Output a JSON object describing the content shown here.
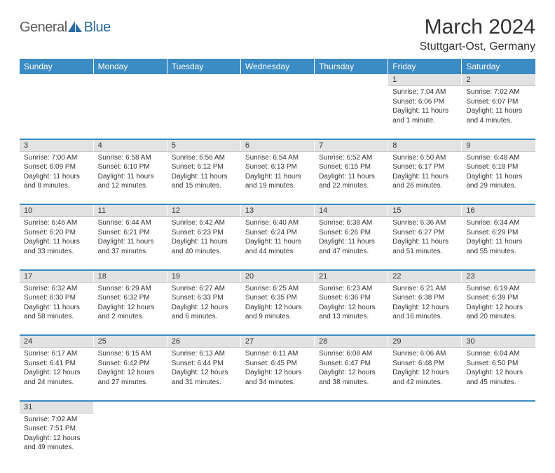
{
  "logo": {
    "general": "General",
    "blue": "Blue"
  },
  "title": {
    "month": "March 2024",
    "location": "Stuttgart-Ost, Germany"
  },
  "colors": {
    "header_bg": "#3b8bc4",
    "header_text": "#ffffff",
    "daynum_bg": "#e2e2e2",
    "row_divider": "#3b8bc4",
    "text": "#333333",
    "logo_general": "#5a5a5a",
    "logo_blue": "#2b6ca3"
  },
  "weekdays": [
    "Sunday",
    "Monday",
    "Tuesday",
    "Wednesday",
    "Thursday",
    "Friday",
    "Saturday"
  ],
  "weeks": [
    {
      "days": [
        null,
        null,
        null,
        null,
        null,
        {
          "n": "1",
          "sunrise": "Sunrise: 7:04 AM",
          "sunset": "Sunset: 6:06 PM",
          "day1": "Daylight: 11 hours",
          "day2": "and 1 minute."
        },
        {
          "n": "2",
          "sunrise": "Sunrise: 7:02 AM",
          "sunset": "Sunset: 6:07 PM",
          "day1": "Daylight: 11 hours",
          "day2": "and 4 minutes."
        }
      ]
    },
    {
      "days": [
        {
          "n": "3",
          "sunrise": "Sunrise: 7:00 AM",
          "sunset": "Sunset: 6:09 PM",
          "day1": "Daylight: 11 hours",
          "day2": "and 8 minutes."
        },
        {
          "n": "4",
          "sunrise": "Sunrise: 6:58 AM",
          "sunset": "Sunset: 6:10 PM",
          "day1": "Daylight: 11 hours",
          "day2": "and 12 minutes."
        },
        {
          "n": "5",
          "sunrise": "Sunrise: 6:56 AM",
          "sunset": "Sunset: 6:12 PM",
          "day1": "Daylight: 11 hours",
          "day2": "and 15 minutes."
        },
        {
          "n": "6",
          "sunrise": "Sunrise: 6:54 AM",
          "sunset": "Sunset: 6:13 PM",
          "day1": "Daylight: 11 hours",
          "day2": "and 19 minutes."
        },
        {
          "n": "7",
          "sunrise": "Sunrise: 6:52 AM",
          "sunset": "Sunset: 6:15 PM",
          "day1": "Daylight: 11 hours",
          "day2": "and 22 minutes."
        },
        {
          "n": "8",
          "sunrise": "Sunrise: 6:50 AM",
          "sunset": "Sunset: 6:17 PM",
          "day1": "Daylight: 11 hours",
          "day2": "and 26 minutes."
        },
        {
          "n": "9",
          "sunrise": "Sunrise: 6:48 AM",
          "sunset": "Sunset: 6:18 PM",
          "day1": "Daylight: 11 hours",
          "day2": "and 29 minutes."
        }
      ]
    },
    {
      "days": [
        {
          "n": "10",
          "sunrise": "Sunrise: 6:46 AM",
          "sunset": "Sunset: 6:20 PM",
          "day1": "Daylight: 11 hours",
          "day2": "and 33 minutes."
        },
        {
          "n": "11",
          "sunrise": "Sunrise: 6:44 AM",
          "sunset": "Sunset: 6:21 PM",
          "day1": "Daylight: 11 hours",
          "day2": "and 37 minutes."
        },
        {
          "n": "12",
          "sunrise": "Sunrise: 6:42 AM",
          "sunset": "Sunset: 6:23 PM",
          "day1": "Daylight: 11 hours",
          "day2": "and 40 minutes."
        },
        {
          "n": "13",
          "sunrise": "Sunrise: 6:40 AM",
          "sunset": "Sunset: 6:24 PM",
          "day1": "Daylight: 11 hours",
          "day2": "and 44 minutes."
        },
        {
          "n": "14",
          "sunrise": "Sunrise: 6:38 AM",
          "sunset": "Sunset: 6:26 PM",
          "day1": "Daylight: 11 hours",
          "day2": "and 47 minutes."
        },
        {
          "n": "15",
          "sunrise": "Sunrise: 6:36 AM",
          "sunset": "Sunset: 6:27 PM",
          "day1": "Daylight: 11 hours",
          "day2": "and 51 minutes."
        },
        {
          "n": "16",
          "sunrise": "Sunrise: 6:34 AM",
          "sunset": "Sunset: 6:29 PM",
          "day1": "Daylight: 11 hours",
          "day2": "and 55 minutes."
        }
      ]
    },
    {
      "days": [
        {
          "n": "17",
          "sunrise": "Sunrise: 6:32 AM",
          "sunset": "Sunset: 6:30 PM",
          "day1": "Daylight: 11 hours",
          "day2": "and 58 minutes."
        },
        {
          "n": "18",
          "sunrise": "Sunrise: 6:29 AM",
          "sunset": "Sunset: 6:32 PM",
          "day1": "Daylight: 12 hours",
          "day2": "and 2 minutes."
        },
        {
          "n": "19",
          "sunrise": "Sunrise: 6:27 AM",
          "sunset": "Sunset: 6:33 PM",
          "day1": "Daylight: 12 hours",
          "day2": "and 6 minutes."
        },
        {
          "n": "20",
          "sunrise": "Sunrise: 6:25 AM",
          "sunset": "Sunset: 6:35 PM",
          "day1": "Daylight: 12 hours",
          "day2": "and 9 minutes."
        },
        {
          "n": "21",
          "sunrise": "Sunrise: 6:23 AM",
          "sunset": "Sunset: 6:36 PM",
          "day1": "Daylight: 12 hours",
          "day2": "and 13 minutes."
        },
        {
          "n": "22",
          "sunrise": "Sunrise: 6:21 AM",
          "sunset": "Sunset: 6:38 PM",
          "day1": "Daylight: 12 hours",
          "day2": "and 16 minutes."
        },
        {
          "n": "23",
          "sunrise": "Sunrise: 6:19 AM",
          "sunset": "Sunset: 6:39 PM",
          "day1": "Daylight: 12 hours",
          "day2": "and 20 minutes."
        }
      ]
    },
    {
      "days": [
        {
          "n": "24",
          "sunrise": "Sunrise: 6:17 AM",
          "sunset": "Sunset: 6:41 PM",
          "day1": "Daylight: 12 hours",
          "day2": "and 24 minutes."
        },
        {
          "n": "25",
          "sunrise": "Sunrise: 6:15 AM",
          "sunset": "Sunset: 6:42 PM",
          "day1": "Daylight: 12 hours",
          "day2": "and 27 minutes."
        },
        {
          "n": "26",
          "sunrise": "Sunrise: 6:13 AM",
          "sunset": "Sunset: 6:44 PM",
          "day1": "Daylight: 12 hours",
          "day2": "and 31 minutes."
        },
        {
          "n": "27",
          "sunrise": "Sunrise: 6:11 AM",
          "sunset": "Sunset: 6:45 PM",
          "day1": "Daylight: 12 hours",
          "day2": "and 34 minutes."
        },
        {
          "n": "28",
          "sunrise": "Sunrise: 6:08 AM",
          "sunset": "Sunset: 6:47 PM",
          "day1": "Daylight: 12 hours",
          "day2": "and 38 minutes."
        },
        {
          "n": "29",
          "sunrise": "Sunrise: 6:06 AM",
          "sunset": "Sunset: 6:48 PM",
          "day1": "Daylight: 12 hours",
          "day2": "and 42 minutes."
        },
        {
          "n": "30",
          "sunrise": "Sunrise: 6:04 AM",
          "sunset": "Sunset: 6:50 PM",
          "day1": "Daylight: 12 hours",
          "day2": "and 45 minutes."
        }
      ]
    },
    {
      "days": [
        {
          "n": "31",
          "sunrise": "Sunrise: 7:02 AM",
          "sunset": "Sunset: 7:51 PM",
          "day1": "Daylight: 12 hours",
          "day2": "and 49 minutes."
        },
        null,
        null,
        null,
        null,
        null,
        null
      ]
    }
  ]
}
